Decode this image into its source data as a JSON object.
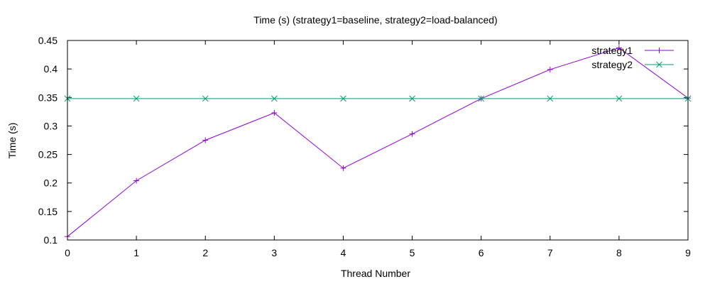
{
  "chart_data": {
    "type": "line",
    "title": "Time (s) (strategy1=baseline, strategy2=load-balanced)",
    "xlabel": "Thread Number",
    "ylabel": "Time (s)",
    "x": [
      0,
      1,
      2,
      3,
      4,
      5,
      6,
      7,
      8,
      9
    ],
    "xlim": [
      0,
      9
    ],
    "ylim": [
      0.1,
      0.45
    ],
    "x_ticks": [
      0,
      1,
      2,
      3,
      4,
      5,
      6,
      7,
      8,
      9
    ],
    "y_ticks": [
      0.1,
      0.15,
      0.2,
      0.25,
      0.3,
      0.35,
      0.4,
      0.45
    ],
    "x_tick_labels": [
      "0",
      "1",
      "2",
      "3",
      "4",
      "5",
      "6",
      "7",
      "8",
      "9"
    ],
    "y_tick_labels": [
      "0.1",
      "0.15",
      "0.2",
      "0.25",
      "0.3",
      "0.35",
      "0.4",
      "0.45"
    ],
    "grid": false,
    "legend_position": "top-right",
    "series": [
      {
        "name": "strategy1",
        "color": "#9400d3",
        "marker": "plus",
        "values": [
          0.106,
          0.204,
          0.275,
          0.323,
          0.226,
          0.286,
          0.348,
          0.399,
          0.437,
          0.349
        ]
      },
      {
        "name": "strategy2",
        "color": "#009e73",
        "marker": "cross",
        "values": [
          0.348,
          0.348,
          0.348,
          0.348,
          0.348,
          0.348,
          0.348,
          0.348,
          0.348,
          0.348
        ]
      }
    ]
  }
}
